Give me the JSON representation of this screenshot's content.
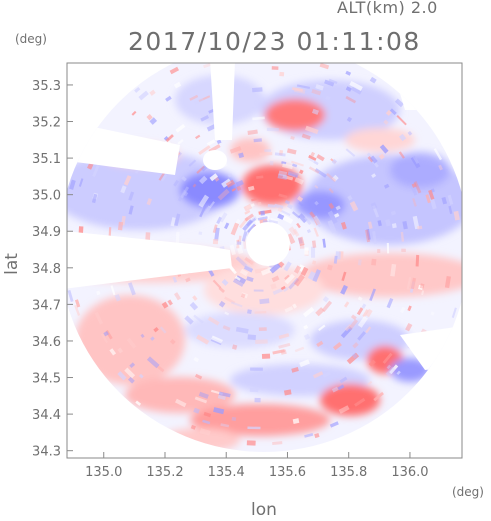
{
  "header": {
    "altitude": "ALT(km) 2.0",
    "timestamp": "2017/10/23 01:11:08"
  },
  "axes": {
    "y_unit": "(deg)",
    "x_unit": "(deg)",
    "ylabel": "lat",
    "xlabel": "lon",
    "x_ticks": [
      "135.0",
      "135.2",
      "135.4",
      "135.6",
      "135.8",
      "136.0"
    ],
    "y_ticks": [
      "34.3",
      "34.4",
      "34.5",
      "34.6",
      "34.7",
      "34.8",
      "34.9",
      "35.0",
      "35.1",
      "35.2",
      "35.3"
    ]
  },
  "map": {
    "type": "radar-ppi",
    "center_lon": 135.52,
    "center_lat": 34.82,
    "xlim": [
      134.88,
      136.17
    ],
    "ylim": [
      34.28,
      35.36
    ],
    "colors": {
      "approach": "#8a8aff",
      "recede": "#ff8080",
      "neutral": "#f2f2ff"
    }
  }
}
